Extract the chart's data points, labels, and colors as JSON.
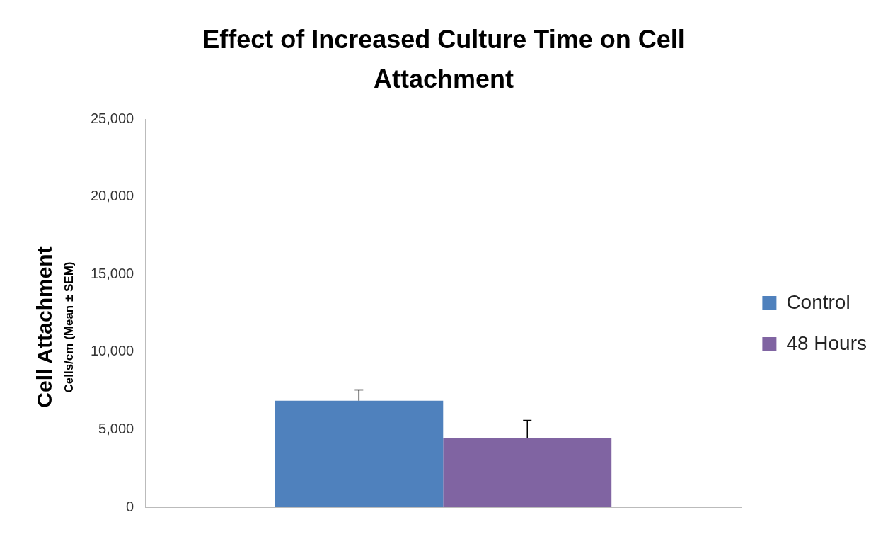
{
  "chart_data": {
    "type": "bar",
    "title": "Effect of Increased Culture Time on Cell Attachment",
    "ylabel": "Cell Attachment",
    "annotations": [
      "Cells/cm (Mean ± SEM)"
    ],
    "categories": [
      null
    ],
    "series": [
      {
        "name": "Control",
        "color": "#4f81bd",
        "values": [
          6850
        ],
        "errors": [
          [
            6850,
            7550
          ]
        ]
      },
      {
        "name": "48 Hours",
        "color": "#8064a2",
        "values": [
          4430
        ],
        "errors": [
          [
            4430,
            5590
          ]
        ]
      }
    ],
    "ylim": [
      0,
      25000
    ],
    "yticks": [
      {
        "value": 0,
        "label": "0"
      },
      {
        "value": 5000,
        "label": "5,000"
      },
      {
        "value": 10000,
        "label": "10,000"
      },
      {
        "value": 15000,
        "label": "15,000"
      },
      {
        "value": 20000,
        "label": "20,000"
      },
      {
        "value": 25000,
        "label": "25,000"
      }
    ],
    "grid": false,
    "legend": "right"
  }
}
